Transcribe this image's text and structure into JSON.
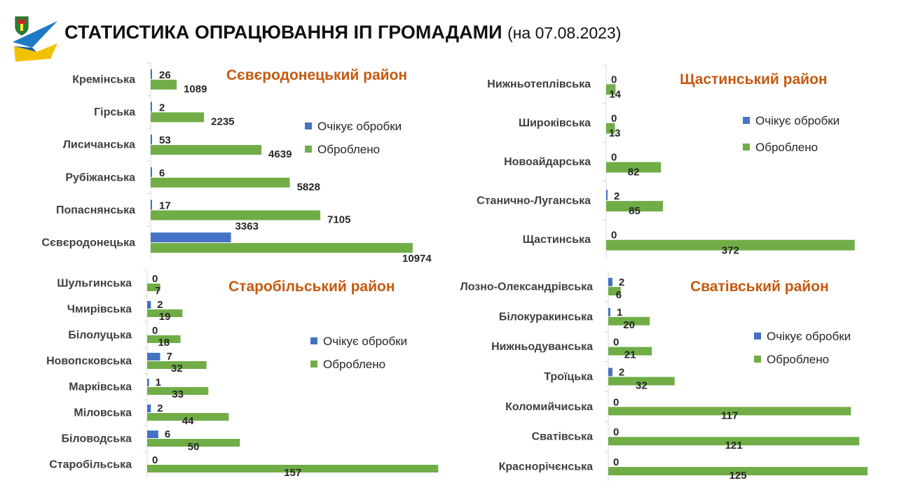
{
  "header": {
    "title": "СТАТИСТИКА ОПРАЦЮВАННЯ ІП ГРОМАДАМИ",
    "subtitle": "(на 07.08.2023)"
  },
  "colors": {
    "pending": "#4472c4",
    "processed": "#70ad47",
    "chart_title": "#c55a11",
    "logo_blue": "#1f7ac6",
    "logo_yellow": "#f2c200"
  },
  "chart_data": [
    {
      "type": "bar",
      "orientation": "horizontal",
      "title": "Сєвєродонецький район",
      "categories": [
        "Кремінська",
        "Гірська",
        "Лисичанська",
        "Рубіжанська",
        "Попаснянська",
        "Сєвєродонецька"
      ],
      "series": [
        {
          "name": "Очікує обробки",
          "values": [
            26,
            2,
            53,
            6,
            17,
            3363
          ]
        },
        {
          "name": "Оброблено",
          "values": [
            1089,
            2235,
            4639,
            5828,
            7105,
            10974
          ]
        }
      ],
      "xlim": [
        0,
        11300
      ],
      "grid": false,
      "legend": "right"
    },
    {
      "type": "bar",
      "orientation": "horizontal",
      "title": "Щастинський район",
      "categories": [
        "Нижньотеплівська",
        "Широківська",
        "Новоайдарська",
        "Станично-Луганська",
        "Щастинська"
      ],
      "series": [
        {
          "name": "Очікує обробки",
          "values": [
            0,
            0,
            0,
            2,
            0
          ]
        },
        {
          "name": "Оброблено",
          "values": [
            14,
            13,
            82,
            85,
            372
          ]
        }
      ],
      "xlim": [
        0,
        385
      ],
      "grid": false,
      "legend": "right"
    },
    {
      "type": "bar",
      "orientation": "horizontal",
      "title": "Старобільський район",
      "categories": [
        "Шульгинська",
        "Чмирівська",
        "Білолуцька",
        "Новопсковська",
        "Марківська",
        "Міловська",
        "Біловодська",
        "Старобільська"
      ],
      "series": [
        {
          "name": "Очікує обробки",
          "values": [
            0,
            2,
            0,
            7,
            1,
            2,
            6,
            0
          ]
        },
        {
          "name": "Оброблено",
          "values": [
            7,
            19,
            18,
            32,
            33,
            44,
            50,
            157
          ]
        }
      ],
      "xlim": [
        0,
        158
      ],
      "grid": false,
      "legend": "right"
    },
    {
      "type": "bar",
      "orientation": "horizontal",
      "title": "Сватівський район",
      "categories": [
        "Лозно-Олександрівська",
        "Білокуракинська",
        "Нижньодуванська",
        "Троїцька",
        "Коломийчиська",
        "Сватівська",
        "Краснорічєнська"
      ],
      "series": [
        {
          "name": "Очікує обробки",
          "values": [
            2,
            1,
            0,
            2,
            0,
            0,
            0
          ]
        },
        {
          "name": "Оброблено",
          "values": [
            6,
            20,
            21,
            32,
            117,
            121,
            125
          ]
        }
      ],
      "xlim": [
        0,
        125
      ],
      "grid": false,
      "legend": "right"
    }
  ]
}
